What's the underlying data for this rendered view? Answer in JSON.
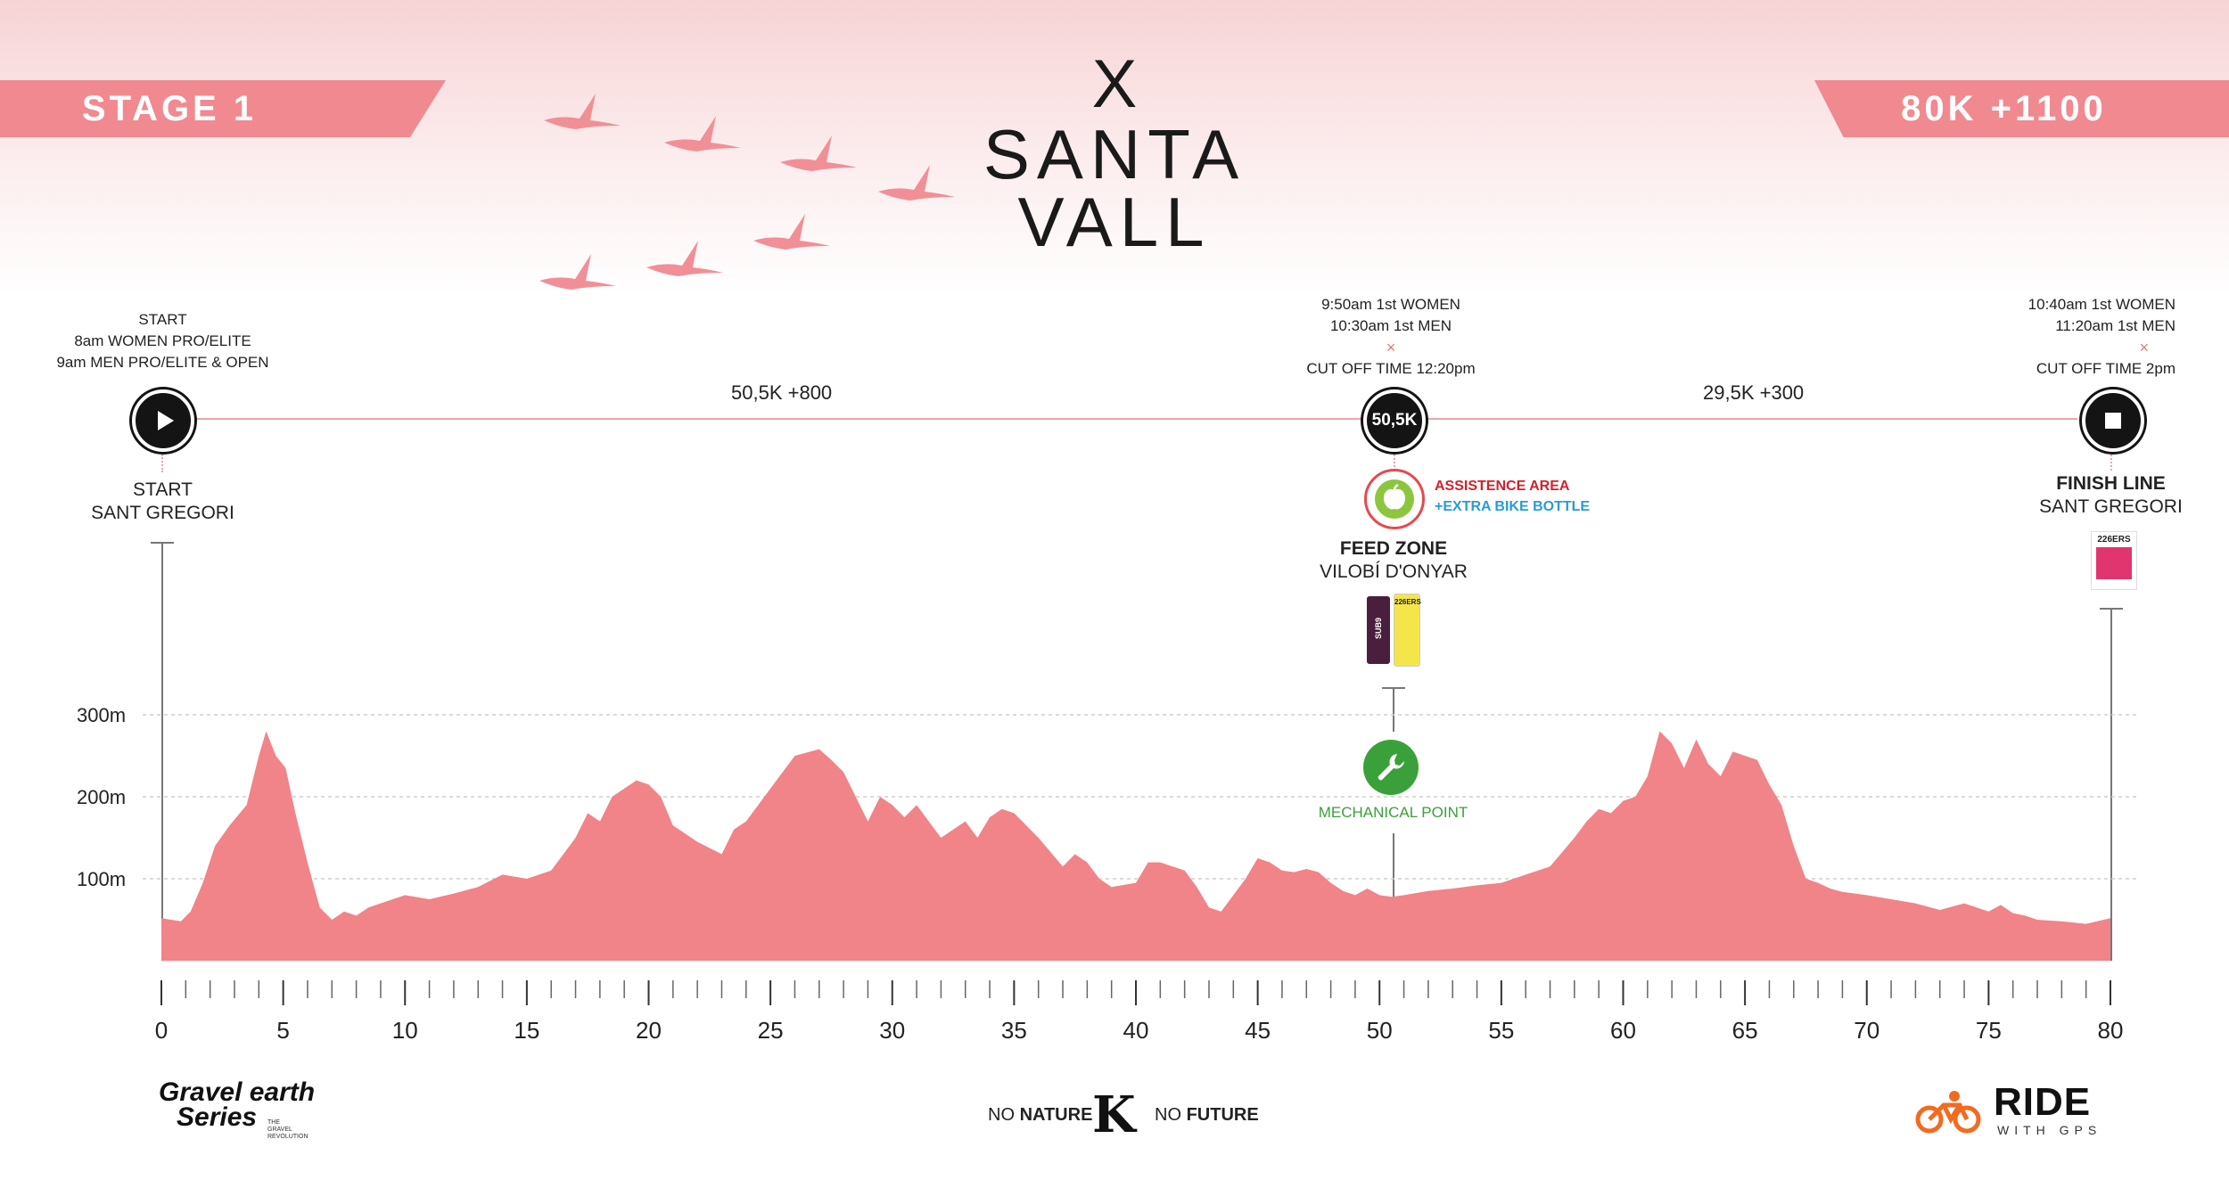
{
  "header": {
    "stage_label": "STAGE 1",
    "distance_label": "80K +1100",
    "logo_x": "X",
    "logo_line1": "SANTA",
    "logo_line2": "VALL"
  },
  "route": {
    "segment1": "50,5K +800",
    "segment2": "29,5K +300",
    "start": {
      "info_line1": "START",
      "info_line2": "8am WOMEN PRO/ELITE",
      "info_line3": "9am MEN PRO/ELITE & OPEN",
      "name_line1": "START",
      "name_line2": "SANT GREGORI"
    },
    "mid": {
      "node_label": "50,5K",
      "time_line1": "9:50am 1st WOMEN",
      "time_line2": "10:30am 1st MEN",
      "marker": "×",
      "cutoff": "CUT OFF TIME 12:20pm",
      "assist_line1": "ASSISTENCE AREA",
      "assist_line2": "+EXTRA BIKE BOTTLE",
      "feed_line1": "FEED ZONE",
      "feed_line2": "VILOBÍ D'ONYAR",
      "mechanical": "MECHANICAL POINT"
    },
    "finish": {
      "time_line1": "10:40am 1st WOMEN",
      "time_line2": "11:20am 1st MEN",
      "marker": "×",
      "cutoff": "CUT OFF TIME 2pm",
      "name_line1": "FINISH LINE",
      "name_line2": "SANT GREGORI"
    }
  },
  "colors": {
    "accent": "#f08a90",
    "profile": "#f08489",
    "assist_red": "#d1222b",
    "assist_blue": "#2a9bd6",
    "mechanical_green": "#3aa13a",
    "node": "#141414"
  },
  "icons": {
    "start": "play-icon",
    "finish": "stop-icon",
    "assist": "apple-icon",
    "mechanical": "wrench-icon",
    "logo_brand": "k-logo-icon",
    "ride": "cyclist-icon"
  },
  "chart_data": {
    "type": "area",
    "title": "",
    "xlabel": "",
    "ylabel": "",
    "xlim": [
      0,
      80
    ],
    "ylim": [
      0,
      300
    ],
    "x_ticks": [
      0,
      5,
      10,
      15,
      20,
      25,
      30,
      35,
      40,
      45,
      50,
      55,
      60,
      65,
      70,
      75,
      80
    ],
    "y_ticks": [
      {
        "value": 100,
        "label": "100m"
      },
      {
        "value": 200,
        "label": "200m"
      },
      {
        "value": 300,
        "label": "300m"
      }
    ],
    "grid": true,
    "series": [
      {
        "x": [
          0,
          0.8,
          1.2,
          1.7,
          2.2,
          2.8,
          3.5,
          4.0,
          4.3,
          4.7,
          5.1,
          5.5,
          6.0,
          6.5,
          7.0,
          7.5,
          8.0,
          8.5,
          9.0,
          10.0,
          11.0,
          12.0,
          13.0,
          14.0,
          15.0,
          16.0,
          16.5,
          17.0,
          17.5,
          18.0,
          18.5,
          19.0,
          19.5,
          20.0,
          20.5,
          21.0,
          22.0,
          23.0,
          23.5,
          24.0,
          25.0,
          26.0,
          27.0,
          27.5,
          28.0,
          29.0,
          29.5,
          30.0,
          30.5,
          31.0,
          31.5,
          32.0,
          33.0,
          33.5,
          34.0,
          34.5,
          35.0,
          36.0,
          37.0,
          37.5,
          38.0,
          38.5,
          39.0,
          40.0,
          40.5,
          41.0,
          42.0,
          42.5,
          43.0,
          43.5,
          44.0,
          44.5,
          45.0,
          45.5,
          46.0,
          46.5,
          47.0,
          47.5,
          48.0,
          48.5,
          49.0,
          49.5,
          50.0,
          50.5,
          51.0,
          52.0,
          53.0,
          54.0,
          55.0,
          56.0,
          57.0,
          58.0,
          58.5,
          59.0,
          59.5,
          60.0,
          60.5,
          61.0,
          61.5,
          62.0,
          62.5,
          63.0,
          63.5,
          64.0,
          64.5,
          65.0,
          65.5,
          66.0,
          66.5,
          67.0,
          67.5,
          68.0,
          68.5,
          69.0,
          70.0,
          71.0,
          72.0,
          73.0,
          74.0,
          75.0,
          75.5,
          76.0,
          76.5,
          77.0,
          78.0,
          79.0,
          80.0
        ],
        "values": [
          52,
          48,
          60,
          95,
          140,
          165,
          190,
          250,
          280,
          250,
          235,
          180,
          120,
          65,
          50,
          60,
          55,
          65,
          70,
          80,
          75,
          82,
          90,
          105,
          100,
          110,
          130,
          150,
          180,
          170,
          200,
          210,
          220,
          215,
          200,
          165,
          145,
          130,
          160,
          170,
          210,
          250,
          258,
          245,
          230,
          170,
          200,
          190,
          175,
          190,
          170,
          150,
          170,
          150,
          175,
          185,
          180,
          150,
          115,
          130,
          120,
          100,
          90,
          95,
          120,
          120,
          110,
          90,
          65,
          60,
          80,
          100,
          125,
          120,
          110,
          108,
          112,
          108,
          95,
          85,
          80,
          88,
          80,
          78,
          80,
          85,
          88,
          92,
          95,
          105,
          115,
          150,
          170,
          185,
          180,
          195,
          200,
          225,
          280,
          265,
          235,
          270,
          240,
          225,
          255,
          250,
          245,
          215,
          190,
          140,
          100,
          95,
          88,
          84,
          80,
          75,
          70,
          62,
          70,
          60,
          68,
          58,
          55,
          50,
          48,
          45,
          52
        ]
      }
    ]
  },
  "footer": {
    "left_logo_line1": "Gravel earth",
    "left_logo_line2": "Series",
    "left_logo_sub": "THE GRAVEL REVOLUTION",
    "center_left_a": "NO ",
    "center_left_b": "NATURE",
    "center_logo": "K",
    "center_right_a": "NO ",
    "center_right_b": "FUTURE",
    "right_logo_main": "RIDE",
    "right_logo_sub": "WITH GPS"
  },
  "product_labels": {
    "finish_drink": "226ERS",
    "feed_gel_1": "SUB9",
    "feed_gel_2": "226ERS"
  }
}
